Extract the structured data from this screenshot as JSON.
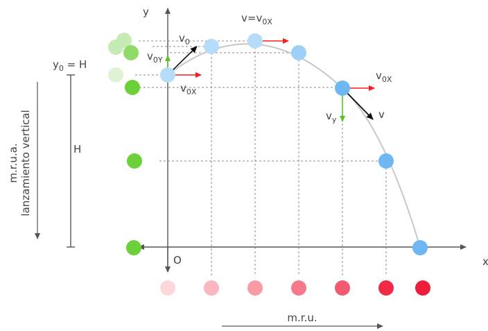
{
  "labels": {
    "y_axis": "y",
    "x_axis": "x",
    "origin": "O",
    "y0": "y",
    "y0_sub": "0",
    "y0_rest": " = H",
    "H": "H",
    "v0": "v",
    "v0_sub": "0",
    "v0y": "v",
    "v0y_sub": "0Y",
    "v0x": "v",
    "v0x_sub": "0X",
    "v_top": "v=v",
    "v_top_sub": "0X",
    "v0x_right": "v",
    "v0x_right_sub": "0X",
    "vy": "v",
    "vy_sub": "y",
    "v": "v",
    "mrua": "m.r.u.a.",
    "vertical_launch": "lanzamiento vertical",
    "mru": "m.r.u."
  },
  "colors": {
    "axis": "#555555",
    "trajectory": "#c8c8c8",
    "blue_ball": "#6fb7f2",
    "light_blue_ball": "#b5dcf8",
    "green_ball": "#6bd03a",
    "light_green_ball": "#c6ebb4",
    "red_vector": "#ff1a1a",
    "green_vector": "#58c22a",
    "black_vector": "#111111",
    "red_balls": [
      "#fcd7dc",
      "#fab7c0",
      "#f89ba7",
      "#f6798a",
      "#f45a6f",
      "#f02a46",
      "#ee1d3c"
    ]
  }
}
